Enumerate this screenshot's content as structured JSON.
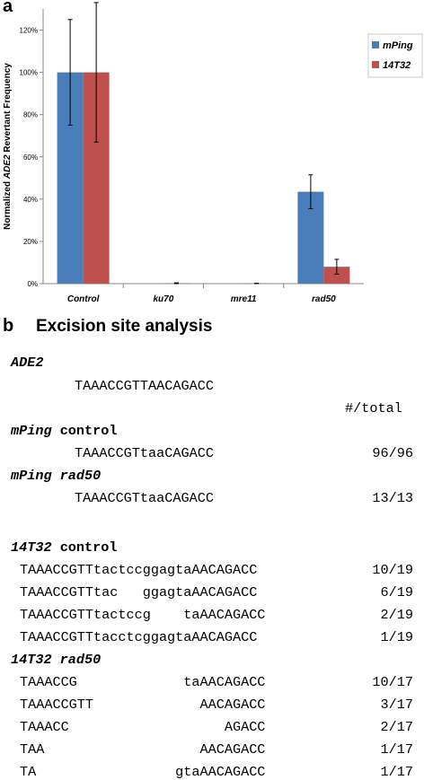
{
  "panel_a_letter": "a",
  "panel_b_letter": "b",
  "panel_b_title": "Excision site analysis",
  "chart_data": {
    "type": "bar",
    "categories": [
      "Control",
      "ku70",
      "mre11",
      "rad50"
    ],
    "series": [
      {
        "name": "mPing",
        "color": "#4a7ebb",
        "values": [
          100,
          0,
          0,
          43.5
        ],
        "err": [
          25,
          0,
          0,
          8
        ]
      },
      {
        "name": "14T32",
        "color": "#c0504d",
        "values": [
          100,
          0.2,
          0.1,
          8
        ],
        "err": [
          33,
          0.2,
          0.1,
          3.5
        ]
      }
    ],
    "ylabel_italic": "ADE2",
    "ylabel_pre": "Normalized ",
    "ylabel_post": " Revertant Frequency",
    "ylim": [
      0,
      130
    ],
    "yticks": [
      0,
      20,
      40,
      60,
      80,
      100,
      120
    ],
    "ytick_labels": [
      "0%",
      "20%",
      "40%",
      "60%",
      "80%",
      "100%",
      "120%"
    ],
    "legend_position": "top-right",
    "grid": false
  },
  "sequences": {
    "ade2_heading": "ADE2",
    "ade2_seq": "TAAACCGTTAACAGACC",
    "count_header": "#/total",
    "groups": [
      {
        "heading_italic": "mPing",
        "heading_rest": " control",
        "rows": [
          {
            "seq": "TAAACCGTtaaCAGACC",
            "count": "96/96"
          }
        ]
      },
      {
        "heading_italic": "mPing rad50",
        "heading_rest": "",
        "rows": [
          {
            "seq": "TAAACCGTtaaCAGACC",
            "count": "13/13"
          }
        ]
      },
      {
        "heading_italic": "14T32",
        "heading_rest": " control",
        "rows": [
          {
            "seq": "TAAACCGTTtactccggagtaAACAGACC",
            "count": "10/19"
          },
          {
            "seq": "TAAACCGTTtac   ggagtaAACAGACC",
            "count": "6/19"
          },
          {
            "seq": "TAAACCGTTtactccg    taAACAGACC",
            "count": "2/19"
          },
          {
            "seq": "TAAACCGTTtacctcggagtaAACAGACC",
            "count": "1/19"
          }
        ]
      },
      {
        "heading_italic": "14T32 rad50",
        "heading_rest": "",
        "rows": [
          {
            "seq": "TAAACCG             taAACAGACC",
            "count": "10/17"
          },
          {
            "seq": "TAAACCGTT             AACAGACC",
            "count": "3/17"
          },
          {
            "seq": "TAAACC                   AGACC",
            "count": "2/17"
          },
          {
            "seq": "TAA                   AACAGACC",
            "count": "1/17"
          },
          {
            "seq": "TA                 gtaAACAGACC",
            "count": "1/17"
          }
        ]
      }
    ]
  }
}
